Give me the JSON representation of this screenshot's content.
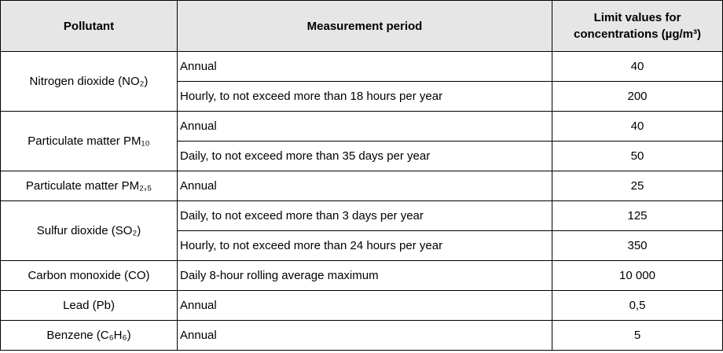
{
  "headers": {
    "pollutant": "Pollutant",
    "period": "Measurement period",
    "limit": "Limit values for concentrations (µg/m³)"
  },
  "groups": [
    {
      "pollutant": "Nitrogen dioxide (NO₂)",
      "rows": [
        {
          "period": "Annual",
          "limit": "40"
        },
        {
          "period": "Hourly, to not exceed more than 18 hours per year",
          "limit": "200"
        }
      ]
    },
    {
      "pollutant": "Particulate matter PM₁₀",
      "rows": [
        {
          "period": "Annual",
          "limit": "40"
        },
        {
          "period": "Daily, to not exceed more than 35 days per year",
          "limit": "50"
        }
      ]
    },
    {
      "pollutant": "Particulate matter PM₂,₅",
      "rows": [
        {
          "period": "Annual",
          "limit": "25"
        }
      ]
    },
    {
      "pollutant": "Sulfur dioxide (SO₂)",
      "rows": [
        {
          "period": "Daily, to not exceed more than 3 days per year",
          "limit": "125"
        },
        {
          "period": "Hourly, to not exceed more than 24 hours per year",
          "limit": "350"
        }
      ]
    },
    {
      "pollutant": "Carbon monoxide (CO)",
      "rows": [
        {
          "period": "Daily 8-hour rolling average maximum",
          "limit": "10 000"
        }
      ]
    },
    {
      "pollutant": "Lead (Pb)",
      "rows": [
        {
          "period": "Annual",
          "limit": "0,5"
        }
      ]
    },
    {
      "pollutant": "Benzene (C₆H₆)",
      "rows": [
        {
          "period": "Annual",
          "limit": "5"
        }
      ]
    }
  ]
}
